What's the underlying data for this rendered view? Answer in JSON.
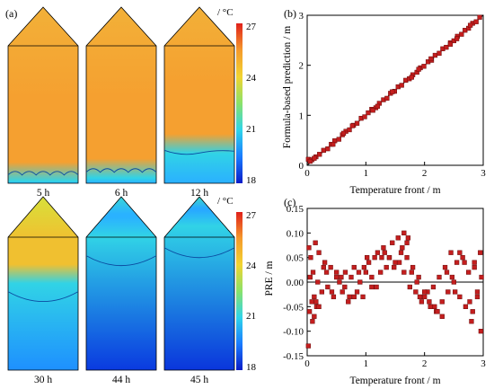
{
  "panel_labels": {
    "a": "(a)",
    "b": "(b)",
    "c": "(c)"
  },
  "chart_data": [
    {
      "type": "heatmap",
      "panel": "(a)",
      "colorbar": {
        "unit": "/ °C",
        "ticks": [
          "27",
          "24",
          "21",
          "18"
        ],
        "range": [
          18,
          27
        ],
        "colors": [
          "#0a1cc8",
          "#1a7cff",
          "#2fd5ea",
          "#8ae26a",
          "#f2d431",
          "#f59a2c",
          "#e0201a"
        ]
      },
      "snapshots": [
        {
          "time": "5 h",
          "front_level": 0.06,
          "top_color": "#f2b038",
          "body_color": "#f5a030",
          "cold_color": "#2ab0ff"
        },
        {
          "time": "6 h",
          "front_level": 0.08,
          "top_color": "#f2b038",
          "body_color": "#f5a030",
          "cold_color": "#2ab0ff"
        },
        {
          "time": "12 h",
          "front_level": 0.22,
          "top_color": "#f2b038",
          "body_color": "#f5a030",
          "cold_color": "#2ab0ff"
        },
        {
          "time": "30 h",
          "front_level": 0.55,
          "top_color": "#d8e03a",
          "body_color": "#f0c030",
          "cold_color": "#1e90ff"
        },
        {
          "time": "44 h",
          "front_level": 0.82,
          "top_color": "#38d6d8",
          "body_color": "#2ab2ff",
          "cold_color": "#0a3ae0"
        },
        {
          "time": "45 h",
          "front_level": 0.88,
          "top_color": "#3fd9c8",
          "body_color": "#28aaff",
          "cold_color": "#0a36dc"
        }
      ]
    },
    {
      "type": "scatter",
      "panel": "(b)",
      "xlabel": "Temperature front / m",
      "ylabel": "Formula-based prediction / m",
      "xlim": [
        0,
        3
      ],
      "ylim": [
        0,
        3
      ],
      "xticks": [
        "0",
        "1",
        "2",
        "3"
      ],
      "yticks": [
        "0",
        "1",
        "2",
        "3"
      ],
      "marker_color": "#c41e1e",
      "x": [
        0.02,
        0.08,
        0.15,
        0.21,
        0.28,
        0.35,
        0.41,
        0.47,
        0.54,
        0.6,
        0.66,
        0.72,
        0.79,
        0.85,
        0.92,
        0.98,
        1.04,
        1.1,
        1.17,
        1.23,
        1.3,
        1.36,
        1.42,
        1.49,
        1.55,
        1.61,
        1.68,
        1.74,
        1.8,
        1.87,
        1.93,
        1.99,
        2.06,
        2.12,
        2.18,
        2.25,
        2.31,
        2.37,
        2.44,
        2.5,
        2.56,
        2.63,
        2.69,
        2.75,
        2.82,
        2.88,
        2.94,
        0.12,
        0.44,
        0.77,
        1.12,
        1.45,
        1.78,
        2.11,
        2.44,
        2.78,
        0.05,
        0.62,
        1.2,
        1.9,
        2.55
      ],
      "y": [
        0.12,
        0.11,
        0.17,
        0.22,
        0.3,
        0.33,
        0.42,
        0.49,
        0.52,
        0.61,
        0.68,
        0.71,
        0.8,
        0.84,
        0.94,
        0.97,
        1.05,
        1.12,
        1.15,
        1.24,
        1.31,
        1.34,
        1.44,
        1.48,
        1.57,
        1.6,
        1.7,
        1.73,
        1.81,
        1.86,
        1.95,
        1.98,
        2.07,
        2.1,
        2.2,
        2.24,
        2.33,
        2.36,
        2.45,
        2.49,
        2.58,
        2.62,
        2.7,
        2.74,
        2.84,
        2.87,
        2.96,
        0.14,
        0.42,
        0.79,
        1.1,
        1.47,
        1.76,
        2.13,
        2.42,
        2.8,
        0.08,
        0.64,
        1.18,
        1.92,
        2.53
      ]
    },
    {
      "type": "scatter",
      "panel": "(c)",
      "xlabel": "Temperature front / m",
      "ylabel": "PRE / m",
      "xlim": [
        0,
        3
      ],
      "ylim": [
        -0.15,
        0.15
      ],
      "xticks": [
        "0",
        "1",
        "2",
        "3"
      ],
      "yticks": [
        "0.15",
        "0.10",
        "0.05",
        "0.00",
        "-0.05",
        "-0.10",
        "-0.15"
      ],
      "zero_line": true,
      "marker_color": "#c41e1e",
      "x": [
        0.02,
        0.04,
        0.06,
        0.08,
        0.1,
        0.12,
        0.14,
        0.16,
        0.18,
        0.2,
        0.25,
        0.3,
        0.35,
        0.4,
        0.45,
        0.5,
        0.55,
        0.6,
        0.65,
        0.7,
        0.75,
        0.8,
        0.85,
        0.9,
        0.95,
        1.0,
        1.05,
        1.1,
        1.15,
        1.2,
        1.25,
        1.3,
        1.35,
        1.4,
        1.45,
        1.5,
        1.55,
        1.6,
        1.65,
        1.7,
        1.75,
        1.8,
        1.85,
        1.9,
        1.95,
        2.0,
        2.05,
        2.1,
        2.15,
        2.2,
        2.25,
        2.3,
        2.35,
        2.4,
        2.45,
        2.5,
        2.55,
        2.6,
        2.65,
        2.7,
        2.75,
        2.8,
        2.85,
        2.9,
        2.95,
        0.05,
        0.15,
        0.28,
        0.42,
        0.58,
        0.72,
        0.88,
        1.02,
        1.18,
        1.32,
        1.48,
        1.62,
        1.78,
        1.92,
        2.08,
        2.22,
        2.38,
        2.52,
        2.68,
        2.82,
        2.97,
        0.09,
        0.33,
        0.64,
        0.97,
        1.27,
        1.57,
        1.87,
        2.17,
        2.47,
        2.77,
        0.2,
        0.5,
        0.8,
        1.1,
        1.4,
        1.7,
        2.0,
        2.3,
        2.6,
        2.9,
        1.65,
        1.72,
        2.96,
        0.03,
        0.12,
        2.85
      ],
      "y": [
        -0.13,
        -0.06,
        0.05,
        -0.04,
        0.02,
        -0.03,
        0.08,
        -0.05,
        0.0,
        0.06,
        -0.02,
        0.04,
        -0.01,
        0.03,
        -0.03,
        0.01,
        0.0,
        -0.02,
        0.02,
        -0.04,
        0.01,
        0.03,
        -0.02,
        0.0,
        -0.03,
        0.02,
        0.04,
        -0.01,
        0.05,
        0.06,
        0.02,
        0.07,
        0.03,
        0.05,
        0.08,
        0.04,
        0.09,
        0.06,
        0.02,
        0.05,
        -0.01,
        0.03,
        -0.02,
        0.01,
        -0.04,
        -0.03,
        -0.02,
        -0.05,
        -0.01,
        -0.06,
        0.01,
        -0.04,
        0.03,
        -0.02,
        0.06,
        0.0,
        0.04,
        -0.03,
        0.05,
        -0.05,
        0.02,
        -0.08,
        0.03,
        -0.02,
        0.06,
        0.01,
        -0.04,
        0.03,
        -0.02,
        0.01,
        -0.03,
        0.02,
        0.05,
        -0.01,
        0.06,
        0.03,
        0.07,
        0.02,
        -0.03,
        -0.04,
        -0.06,
        0.02,
        -0.02,
        0.04,
        -0.06,
        0.01,
        -0.08,
        0.02,
        -0.01,
        0.03,
        0.05,
        0.04,
        0.0,
        -0.05,
        0.01,
        -0.04,
        -0.05,
        0.02,
        -0.03,
        0.01,
        0.05,
        0.08,
        -0.02,
        -0.07,
        0.06,
        -0.03,
        0.1,
        0.09,
        -0.1,
        0.07,
        -0.07,
        0.04
      ]
    }
  ]
}
